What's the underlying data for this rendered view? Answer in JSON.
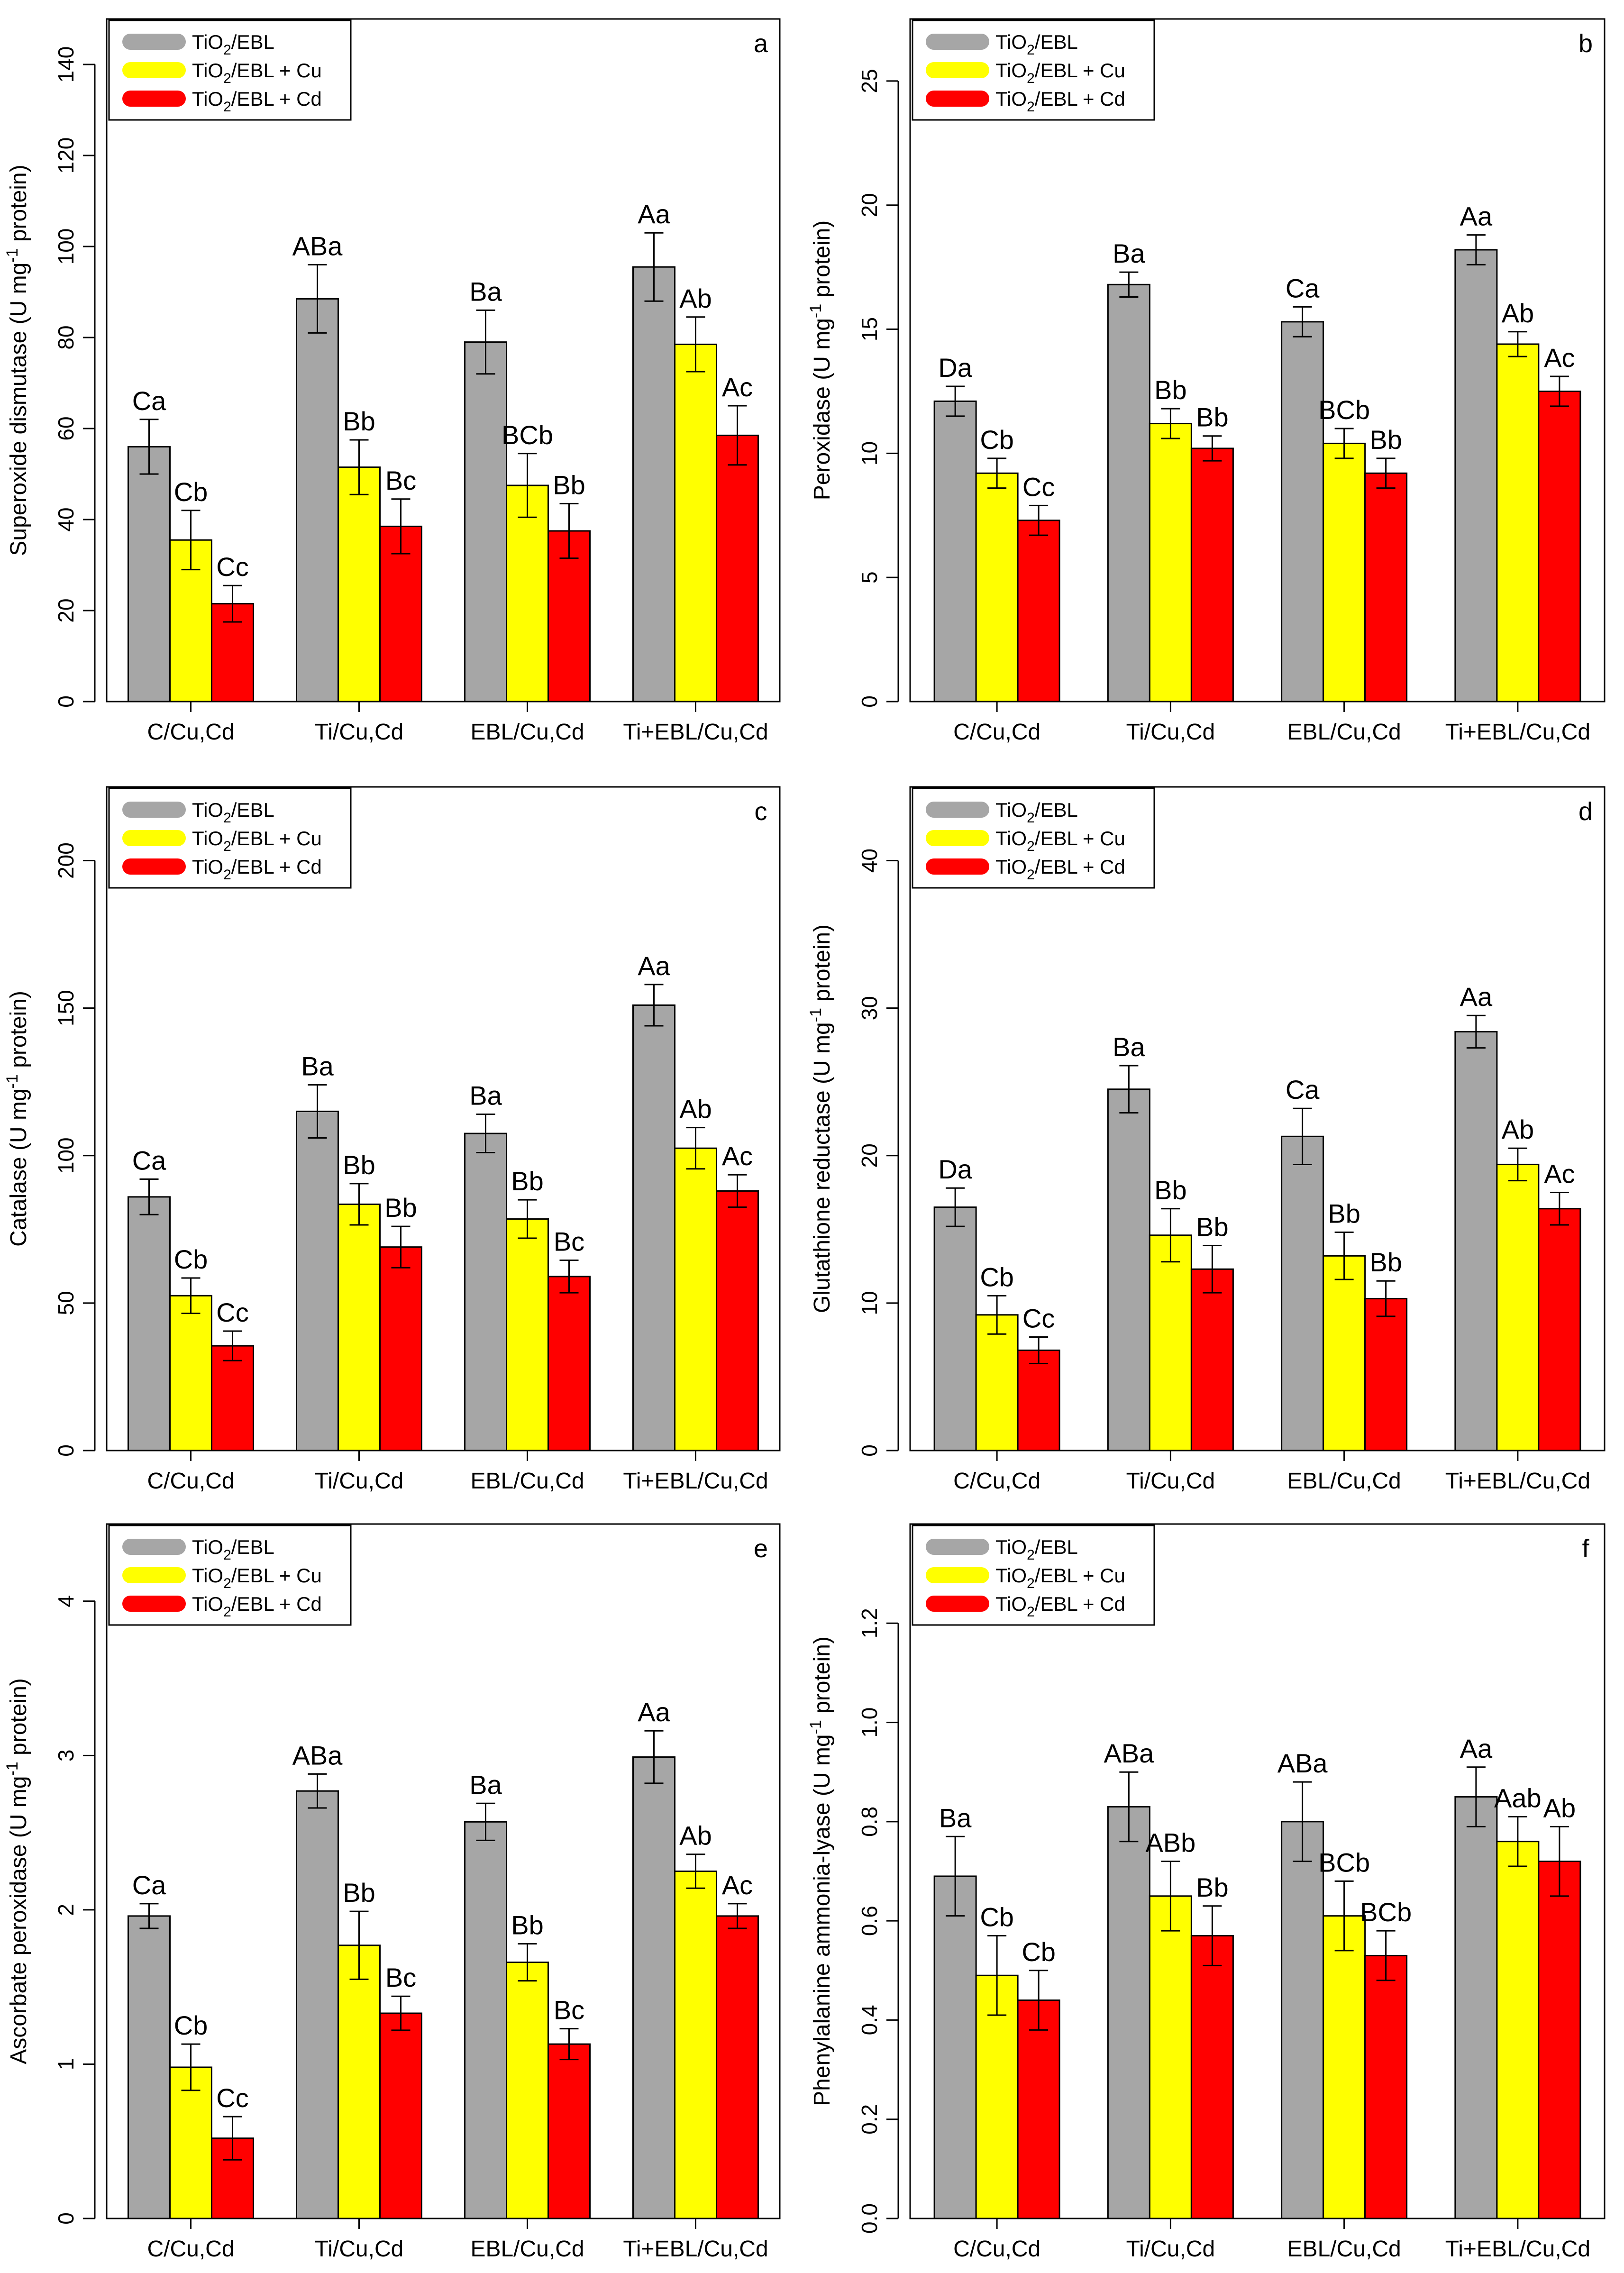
{
  "figure": {
    "legend_labels": [
      {
        "base": "TiO",
        "sub": "2",
        "rest": "/EBL"
      },
      {
        "base": "TiO",
        "sub": "2",
        "rest": "/EBL + Cu"
      },
      {
        "base": "TiO",
        "sub": "2",
        "rest": "/EBL + Cd"
      }
    ]
  },
  "chart_data": [
    {
      "panel": "a",
      "type": "bar",
      "title": "",
      "ylabel": {
        "pre": "Superoxide dismutase (U mg",
        "sup": "-1",
        "post": " protein)"
      },
      "xlabel": "",
      "categories": [
        "C/Cu,Cd",
        "Ti/Cu,Cd",
        "EBL/Cu,Cd",
        "Ti+EBL/Cu,Cd"
      ],
      "ylim": [
        0,
        150
      ],
      "yticks": [
        0,
        20,
        40,
        60,
        80,
        100,
        120,
        140
      ],
      "series": [
        {
          "name": "TiO2/EBL",
          "color": "#a6a6a6",
          "values": [
            56,
            88.5,
            79,
            95.5
          ],
          "errors": [
            6,
            7.5,
            7,
            7.5
          ],
          "labels": [
            "Ca",
            "ABa",
            "Ba",
            "Aa"
          ]
        },
        {
          "name": "TiO2/EBL + Cu",
          "color": "#ffff00",
          "values": [
            35.5,
            51.5,
            47.5,
            78.5
          ],
          "errors": [
            6.5,
            6,
            7,
            6
          ],
          "labels": [
            "Cb",
            "Bb",
            "BCb",
            "Ab"
          ]
        },
        {
          "name": "TiO2/EBL + Cd",
          "color": "#ff0000",
          "values": [
            21.5,
            38.5,
            37.5,
            58.5
          ],
          "errors": [
            4,
            6,
            6,
            6.5
          ],
          "labels": [
            "Cc",
            "Bc",
            "Bb",
            "Ac"
          ]
        }
      ]
    },
    {
      "panel": "b",
      "type": "bar",
      "title": "",
      "ylabel": {
        "pre": "Peroxidase (U mg",
        "sup": "-1",
        "post": " protein)"
      },
      "xlabel": "",
      "categories": [
        "C/Cu,Cd",
        "Ti/Cu,Cd",
        "EBL/Cu,Cd",
        "Ti+EBL/Cu,Cd"
      ],
      "ylim": [
        0,
        27.5
      ],
      "yticks": [
        0,
        5,
        10,
        15,
        20,
        25
      ],
      "series": [
        {
          "name": "TiO2/EBL",
          "color": "#a6a6a6",
          "values": [
            12.1,
            16.8,
            15.3,
            18.2
          ],
          "errors": [
            0.6,
            0.5,
            0.6,
            0.6
          ],
          "labels": [
            "Da",
            "Ba",
            "Ca",
            "Aa"
          ]
        },
        {
          "name": "TiO2/EBL + Cu",
          "color": "#ffff00",
          "values": [
            9.2,
            11.2,
            10.4,
            14.4
          ],
          "errors": [
            0.6,
            0.6,
            0.6,
            0.5
          ],
          "labels": [
            "Cb",
            "Bb",
            "BCb",
            "Ab"
          ]
        },
        {
          "name": "TiO2/EBL + Cd",
          "color": "#ff0000",
          "values": [
            7.3,
            10.2,
            9.2,
            12.5
          ],
          "errors": [
            0.6,
            0.5,
            0.6,
            0.6
          ],
          "labels": [
            "Cc",
            "Bb",
            "Bb",
            "Ac"
          ]
        }
      ]
    },
    {
      "panel": "c",
      "type": "bar",
      "title": "",
      "ylabel": {
        "pre": "Catalase (U mg",
        "sup": "-1",
        "post": " protein)"
      },
      "xlabel": "",
      "categories": [
        "C/Cu,Cd",
        "Ti/Cu,Cd",
        "EBL/Cu,Cd",
        "Ti+EBL/Cu,Cd"
      ],
      "ylim": [
        0,
        225
      ],
      "yticks": [
        0,
        50,
        100,
        150,
        200
      ],
      "series": [
        {
          "name": "TiO2/EBL",
          "color": "#a6a6a6",
          "values": [
            86,
            115,
            107.5,
            151
          ],
          "errors": [
            6,
            9,
            6.5,
            7
          ],
          "labels": [
            "Ca",
            "Ba",
            "Ba",
            "Aa"
          ]
        },
        {
          "name": "TiO2/EBL + Cu",
          "color": "#ffff00",
          "values": [
            52.5,
            83.5,
            78.5,
            102.5
          ],
          "errors": [
            6,
            7,
            6.5,
            7
          ],
          "labels": [
            "Cb",
            "Bb",
            "Bb",
            "Ab"
          ]
        },
        {
          "name": "TiO2/EBL + Cd",
          "color": "#ff0000",
          "values": [
            35.5,
            69,
            59,
            88
          ],
          "errors": [
            5,
            7,
            5.5,
            5.5
          ],
          "labels": [
            "Cc",
            "Bb",
            "Bc",
            "Ac"
          ]
        }
      ]
    },
    {
      "panel": "d",
      "type": "bar",
      "title": "",
      "ylabel": {
        "pre": "Glutathione reductase (U mg",
        "sup": "-1",
        "post": " protein)"
      },
      "xlabel": "",
      "categories": [
        "C/Cu,Cd",
        "Ti/Cu,Cd",
        "EBL/Cu,Cd",
        "Ti+EBL/Cu,Cd"
      ],
      "ylim": [
        0,
        45
      ],
      "yticks": [
        0,
        10,
        20,
        30,
        40
      ],
      "series": [
        {
          "name": "TiO2/EBL",
          "color": "#a6a6a6",
          "values": [
            16.5,
            24.5,
            21.3,
            28.4
          ],
          "errors": [
            1.3,
            1.6,
            1.9,
            1.1
          ],
          "labels": [
            "Da",
            "Ba",
            "Ca",
            "Aa"
          ]
        },
        {
          "name": "TiO2/EBL + Cu",
          "color": "#ffff00",
          "values": [
            9.2,
            14.6,
            13.2,
            19.4
          ],
          "errors": [
            1.3,
            1.8,
            1.6,
            1.1
          ],
          "labels": [
            "Cb",
            "Bb",
            "Bb",
            "Ab"
          ]
        },
        {
          "name": "TiO2/EBL + Cd",
          "color": "#ff0000",
          "values": [
            6.8,
            12.3,
            10.3,
            16.4
          ],
          "errors": [
            0.9,
            1.6,
            1.2,
            1.1
          ],
          "labels": [
            "Cc",
            "Bb",
            "Bb",
            "Ac"
          ]
        }
      ]
    },
    {
      "panel": "e",
      "type": "bar",
      "title": "",
      "ylabel": {
        "pre": "Ascorbate peroxidase (U mg",
        "sup": "-1",
        "post": " protein)"
      },
      "xlabel": "",
      "categories": [
        "C/Cu,Cd",
        "Ti/Cu,Cd",
        "EBL/Cu,Cd",
        "Ti+EBL/Cu,Cd"
      ],
      "ylim": [
        0,
        4.5
      ],
      "yticks": [
        0,
        1,
        2,
        3,
        4
      ],
      "series": [
        {
          "name": "TiO2/EBL",
          "color": "#a6a6a6",
          "values": [
            1.96,
            2.77,
            2.57,
            2.99
          ],
          "errors": [
            0.08,
            0.11,
            0.12,
            0.17
          ],
          "labels": [
            "Ca",
            "ABa",
            "Ba",
            "Aa"
          ]
        },
        {
          "name": "TiO2/EBL + Cu",
          "color": "#ffff00",
          "values": [
            0.98,
            1.77,
            1.66,
            2.25
          ],
          "errors": [
            0.15,
            0.22,
            0.12,
            0.11
          ],
          "labels": [
            "Cb",
            "Bb",
            "Bb",
            "Ab"
          ]
        },
        {
          "name": "TiO2/EBL + Cd",
          "color": "#ff0000",
          "values": [
            0.52,
            1.33,
            1.13,
            1.96
          ],
          "errors": [
            0.14,
            0.11,
            0.1,
            0.08
          ],
          "labels": [
            "Cc",
            "Bc",
            "Bc",
            "Ac"
          ]
        }
      ]
    },
    {
      "panel": "f",
      "type": "bar",
      "title": "",
      "ylabel": {
        "pre": "Phenylalanine ammonia-lyase (U mg",
        "sup": "-1",
        "post": " protein)"
      },
      "xlabel": "",
      "categories": [
        "C/Cu,Cd",
        "Ti/Cu,Cd",
        "EBL/Cu,Cd",
        "Ti+EBL/Cu,Cd"
      ],
      "ylim": [
        0,
        1.4
      ],
      "yticks": [
        0.0,
        0.2,
        0.4,
        0.6,
        0.8,
        1.0,
        1.2
      ],
      "ytick_labels": [
        "0.0",
        "0.2",
        "0.4",
        "0.6",
        "0.8",
        "1.0",
        "1.2"
      ],
      "series": [
        {
          "name": "TiO2/EBL",
          "color": "#a6a6a6",
          "values": [
            0.69,
            0.83,
            0.8,
            0.85
          ],
          "errors": [
            0.08,
            0.07,
            0.08,
            0.06
          ],
          "labels": [
            "Ba",
            "ABa",
            "ABa",
            "Aa"
          ]
        },
        {
          "name": "TiO2/EBL + Cu",
          "color": "#ffff00",
          "values": [
            0.49,
            0.65,
            0.61,
            0.76
          ],
          "errors": [
            0.08,
            0.07,
            0.07,
            0.05
          ],
          "labels": [
            "Cb",
            "ABb",
            "BCb",
            "Aab"
          ]
        },
        {
          "name": "TiO2/EBL + Cd",
          "color": "#ff0000",
          "values": [
            0.44,
            0.57,
            0.53,
            0.72
          ],
          "errors": [
            0.06,
            0.06,
            0.05,
            0.07
          ],
          "labels": [
            "Cb",
            "Bb",
            "BCb",
            "Ab"
          ]
        }
      ]
    }
  ]
}
